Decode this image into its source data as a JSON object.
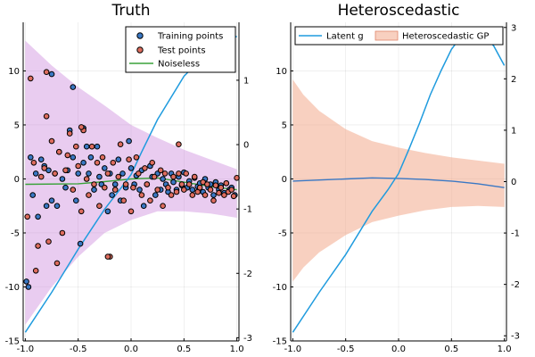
{
  "chart_data": [
    {
      "type": "scatter",
      "title": "Truth",
      "xlim": [
        -1.02,
        1.02
      ],
      "ylim": [
        -15,
        14.5
      ],
      "y2lim": [
        -3.05,
        1.9
      ],
      "xticks": [
        -1.0,
        -0.5,
        0.0,
        0.5,
        1.0
      ],
      "xtick_labels": [
        "-1.0",
        "-0.5",
        "0.0",
        "0.5",
        "1.0"
      ],
      "yticks": [
        -15,
        -10,
        -5,
        0,
        5,
        10
      ],
      "ytick_labels": [
        "-15",
        "-10",
        "-5",
        "0",
        "5",
        "10"
      ],
      "y2ticks": [
        -3,
        -2,
        -1,
        0,
        1
      ],
      "y2tick_labels": [
        "-3",
        "-2",
        "-1",
        "0",
        "1"
      ],
      "grid": true,
      "legend_position": "top-right",
      "legend": [
        "Training points",
        "Test points",
        "Noiseless"
      ],
      "colors": {
        "training": "#3a78c4",
        "test": "#de6d5e",
        "noiseless": "#3aa23a",
        "latent": "#1f9bde",
        "band": "#c77fda"
      },
      "band": {
        "x": [
          -1.0,
          -0.75,
          -0.5,
          -0.25,
          0.0,
          0.25,
          0.5,
          0.75,
          1.0
        ],
        "upper": [
          12.8,
          10.5,
          8.5,
          6.8,
          5.0,
          3.8,
          2.7,
          1.8,
          0.9
        ],
        "lower": [
          -13.5,
          -10.0,
          -7.2,
          -5.0,
          -3.8,
          -3.0,
          -3.0,
          -3.2,
          -3.6
        ]
      },
      "noiseless": {
        "x": [
          -1.0,
          -0.5,
          -0.25,
          0.0,
          0.25,
          0.5,
          0.75,
          1.0
        ],
        "y": [
          -0.5,
          -0.45,
          -0.25,
          0.0,
          0.1,
          -0.3,
          -0.7,
          -1.0
        ]
      },
      "latent": {
        "x": [
          -1.0,
          -0.75,
          -0.5,
          -0.25,
          -0.1,
          0.0,
          0.1,
          0.25,
          0.5,
          0.75,
          1.0
        ],
        "y": [
          -14.2,
          -10.5,
          -6.5,
          -2.8,
          -0.9,
          0.4,
          2.5,
          5.5,
          9.5,
          12.0,
          13.2
        ]
      },
      "training_points": {
        "x": [
          -0.99,
          -0.97,
          -0.95,
          -0.93,
          -0.9,
          -0.88,
          -0.85,
          -0.82,
          -0.8,
          -0.78,
          -0.75,
          -0.72,
          -0.7,
          -0.68,
          -0.65,
          -0.62,
          -0.6,
          -0.58,
          -0.55,
          -0.52,
          -0.5,
          -0.48,
          -0.45,
          -0.42,
          -0.4,
          -0.38,
          -0.35,
          -0.32,
          -0.3,
          -0.28,
          -0.25,
          -0.22,
          -0.2,
          -0.18,
          -0.15,
          -0.12,
          -0.1,
          -0.08,
          -0.05,
          -0.02,
          0.0,
          0.03,
          0.05,
          0.08,
          0.1,
          0.12,
          0.15,
          0.18,
          0.2,
          0.23,
          0.25,
          0.28,
          0.3,
          0.33,
          0.35,
          0.38,
          0.4,
          0.43,
          0.45,
          0.48,
          0.5,
          0.53,
          0.55,
          0.58,
          0.6,
          0.63,
          0.65,
          0.68,
          0.7,
          0.73,
          0.75,
          0.78,
          0.8,
          0.83,
          0.85,
          0.88,
          0.9,
          0.93,
          0.95,
          0.98,
          -0.75,
          -0.55,
          -0.45
        ],
        "y": [
          -9.5,
          -10.0,
          2.0,
          -1.5,
          0.5,
          -3.5,
          1.8,
          1.2,
          -2.5,
          0.8,
          -2.0,
          0.5,
          -2.5,
          2.5,
          0.0,
          -0.8,
          0.8,
          4.5,
          2.0,
          -2.0,
          0.5,
          -6.0,
          1.5,
          3.0,
          0.5,
          2.0,
          -1.0,
          3.0,
          0.2,
          -0.5,
          1.0,
          -3.0,
          0.5,
          -1.5,
          -0.5,
          1.8,
          -2.0,
          0.5,
          -0.8,
          3.5,
          1.0,
          -0.5,
          0.3,
          -1.0,
          0.8,
          -2.5,
          -0.5,
          1.2,
          0.2,
          -1.5,
          0.5,
          -1.0,
          0.0,
          -0.5,
          -1.2,
          0.5,
          -0.3,
          -1.0,
          0.2,
          -0.6,
          0.6,
          -0.8,
          -0.2,
          -1.0,
          0.1,
          -0.7,
          -0.4,
          -1.2,
          0.0,
          -0.8,
          -0.5,
          -1.5,
          -0.3,
          -1.0,
          -0.6,
          -1.3,
          -0.4,
          -1.0,
          -0.8,
          -1.5,
          9.7,
          8.5,
          4.7
        ]
      },
      "test_points": {
        "x": [
          -0.98,
          -0.95,
          -0.92,
          -0.9,
          -0.88,
          -0.85,
          -0.82,
          -0.8,
          -0.78,
          -0.75,
          -0.72,
          -0.7,
          -0.68,
          -0.65,
          -0.62,
          -0.6,
          -0.58,
          -0.55,
          -0.52,
          -0.5,
          -0.47,
          -0.45,
          -0.42,
          -0.4,
          -0.37,
          -0.35,
          -0.32,
          -0.3,
          -0.27,
          -0.25,
          -0.22,
          -0.2,
          -0.17,
          -0.15,
          -0.12,
          -0.1,
          -0.07,
          -0.05,
          -0.02,
          0.0,
          0.02,
          0.05,
          0.07,
          0.1,
          0.13,
          0.15,
          0.18,
          0.2,
          0.22,
          0.25,
          0.28,
          0.3,
          0.32,
          0.35,
          0.38,
          0.4,
          0.43,
          0.45,
          0.48,
          0.5,
          0.52,
          0.55,
          0.58,
          0.6,
          0.63,
          0.65,
          0.68,
          0.7,
          0.72,
          0.75,
          0.78,
          0.8,
          0.83,
          0.85,
          0.88,
          0.9,
          0.92,
          0.95,
          0.97,
          1.0,
          -0.8,
          -0.47,
          0.45,
          -0.22
        ],
        "y": [
          -3.5,
          9.3,
          1.5,
          -8.5,
          -6.2,
          0.2,
          1.0,
          5.8,
          -5.8,
          3.5,
          0.5,
          -7.8,
          2.5,
          -5.0,
          0.8,
          2.2,
          4.2,
          -1.0,
          3.0,
          1.2,
          -3.0,
          4.5,
          0.0,
          -1.5,
          3.0,
          -0.5,
          1.5,
          -2.5,
          2.0,
          -0.8,
          0.5,
          -7.2,
          1.5,
          -1.0,
          0.2,
          3.2,
          -2.0,
          -0.5,
          1.8,
          -3.0,
          -0.8,
          2.0,
          0.5,
          -1.5,
          1.0,
          -0.5,
          -2.0,
          1.5,
          0.2,
          -1.0,
          0.8,
          -2.5,
          0.5,
          -0.8,
          -1.5,
          0.2,
          -1.2,
          0.5,
          -0.5,
          -1.0,
          0.5,
          -0.5,
          -1.5,
          0.2,
          -1.2,
          -0.8,
          -0.3,
          -1.5,
          -0.5,
          -1.0,
          -2.0,
          -0.6,
          -1.3,
          -0.8,
          -1.5,
          -0.4,
          -1.2,
          -1.0,
          -1.6,
          0.1,
          9.9,
          4.8,
          3.2,
          -7.2
        ]
      }
    },
    {
      "type": "line",
      "title": "Heteroscedastic",
      "xlim": [
        -1.02,
        1.02
      ],
      "ylim": [
        -15,
        14.5
      ],
      "y2lim": [
        -3.1,
        3.1
      ],
      "xticks": [
        -1.0,
        -0.5,
        0.0,
        0.5,
        1.0
      ],
      "xtick_labels": [
        "-1.0",
        "-0.5",
        "0.0",
        "0.5",
        "1.0"
      ],
      "yticks": [
        -15,
        -10,
        -5,
        0,
        5,
        10
      ],
      "ytick_labels": [
        "-15",
        "-10",
        "-5",
        "0",
        "5",
        "10"
      ],
      "y2ticks": [
        -3,
        -2,
        -1,
        0,
        1,
        2,
        3
      ],
      "y2tick_labels": [
        "-3",
        "-2",
        "-1",
        "0",
        "1",
        "2",
        "3"
      ],
      "grid": true,
      "legend_position": "top",
      "legend": [
        "Latent g",
        "Heteroscedastic GP"
      ],
      "colors": {
        "latent": "#1f9bde",
        "band": "#f2a98d",
        "mean": "#3a78c4"
      },
      "latent": {
        "x": [
          -1.0,
          -0.75,
          -0.5,
          -0.25,
          -0.1,
          0.0,
          0.1,
          0.2,
          0.3,
          0.4,
          0.5,
          0.6,
          0.7,
          0.8,
          0.9,
          1.0
        ],
        "y": [
          -14.2,
          -10.5,
          -7.0,
          -3.0,
          -1.0,
          0.5,
          2.8,
          5.2,
          7.8,
          10.0,
          12.0,
          13.3,
          13.8,
          13.5,
          12.3,
          10.5
        ]
      },
      "band": {
        "x": [
          -1.0,
          -0.9,
          -0.75,
          -0.5,
          -0.25,
          0.0,
          0.25,
          0.5,
          0.75,
          1.0
        ],
        "upper": [
          9.2,
          7.8,
          6.3,
          4.6,
          3.5,
          2.9,
          2.4,
          2.0,
          1.7,
          1.4
        ],
        "lower": [
          -9.5,
          -8.2,
          -6.8,
          -5.2,
          -4.0,
          -3.4,
          -2.9,
          -2.6,
          -2.5,
          -2.6
        ]
      },
      "mean": {
        "x": [
          -1.0,
          -0.5,
          -0.25,
          0.0,
          0.25,
          0.5,
          0.75,
          1.0
        ],
        "y": [
          -0.2,
          0.0,
          0.1,
          0.05,
          -0.05,
          -0.2,
          -0.45,
          -0.8
        ]
      }
    }
  ]
}
